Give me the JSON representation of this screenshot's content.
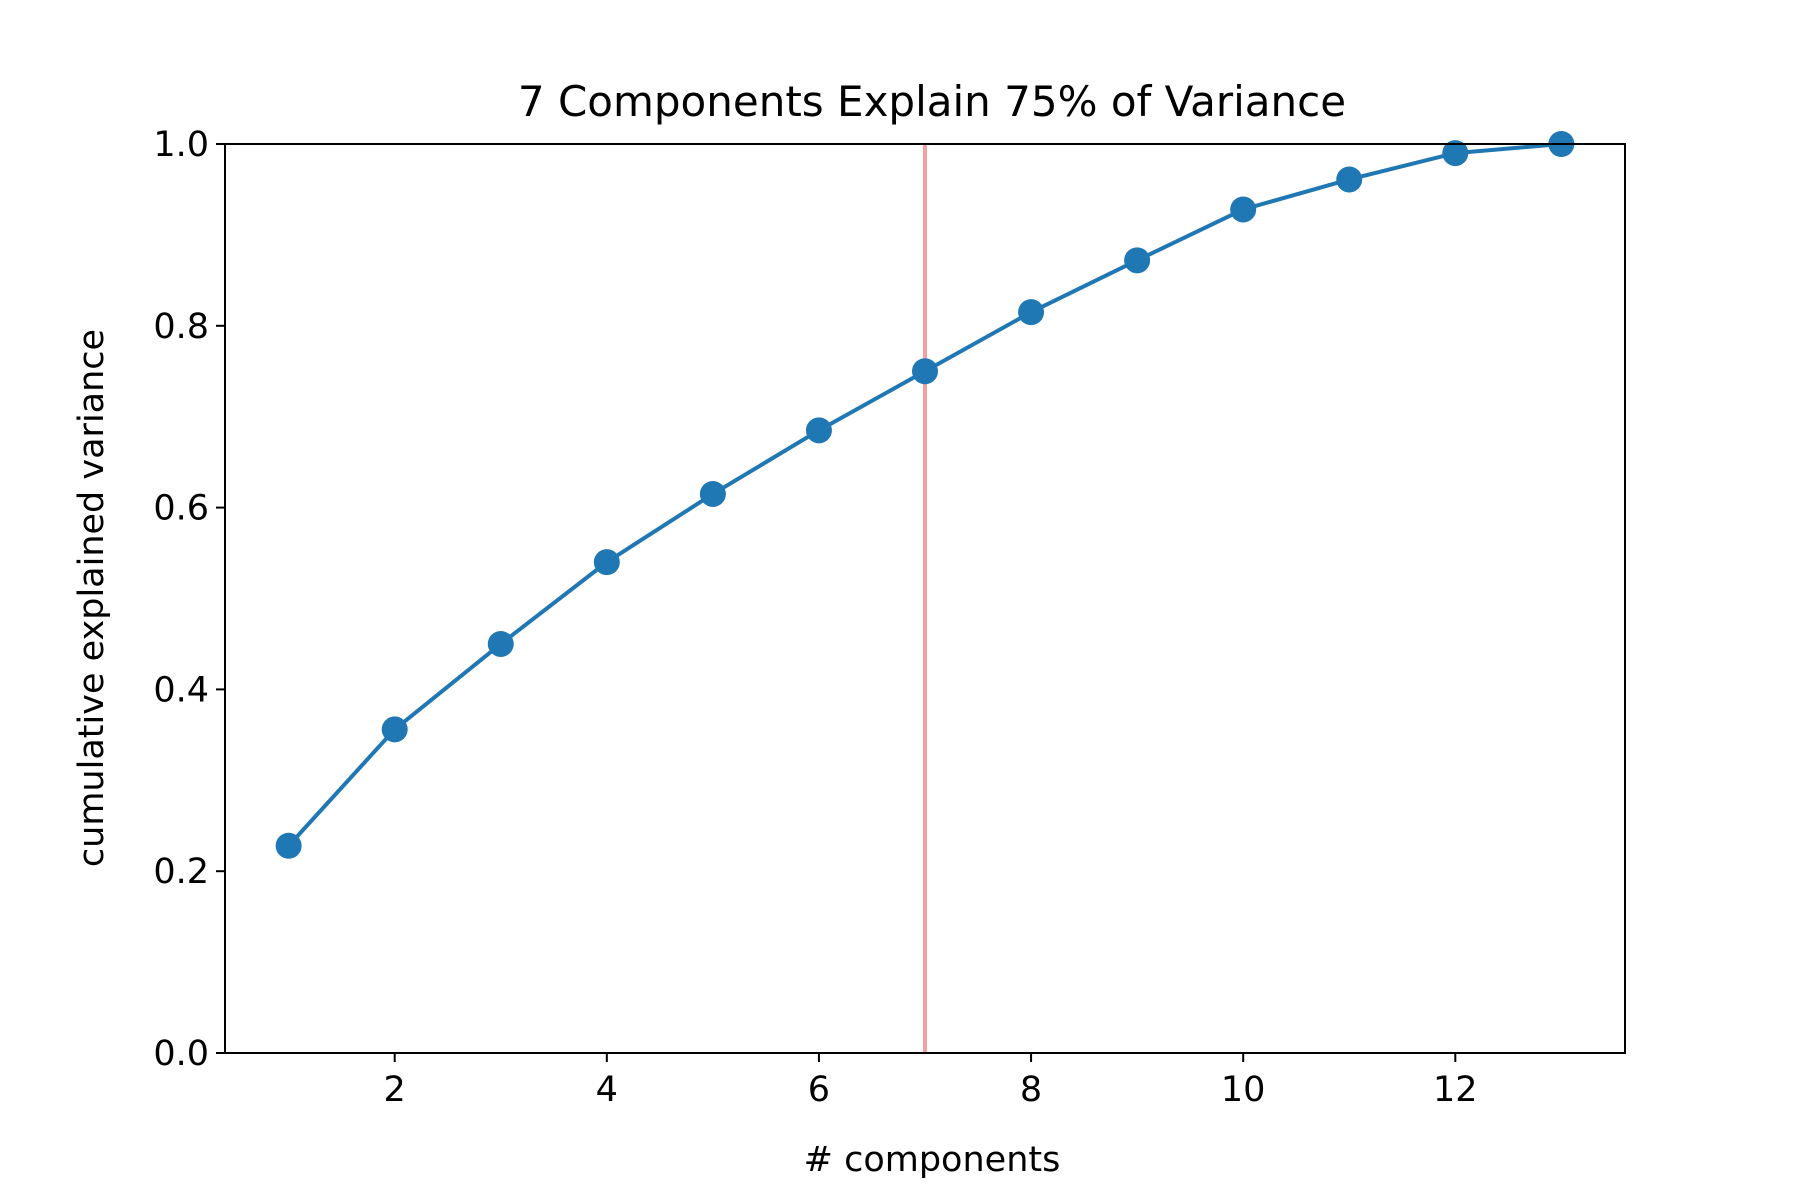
{
  "chart_data": {
    "type": "line",
    "title": "7 Components Explain 75% of Variance",
    "xlabel": "# components",
    "ylabel": "cumulative explained variance",
    "x": [
      1,
      2,
      3,
      4,
      5,
      6,
      7,
      8,
      9,
      10,
      11,
      12,
      13
    ],
    "y": [
      0.228,
      0.356,
      0.45,
      0.54,
      0.615,
      0.685,
      0.75,
      0.815,
      0.872,
      0.928,
      0.961,
      0.99,
      1.0
    ],
    "xlim": [
      0.4,
      13.6
    ],
    "ylim": [
      0,
      1
    ],
    "x_ticks": [
      2,
      4,
      6,
      8,
      10,
      12
    ],
    "x_tick_labels": [
      "2",
      "4",
      "6",
      "8",
      "10",
      "12"
    ],
    "y_ticks": [
      0,
      0.2,
      0.4,
      0.6,
      0.8,
      1.0
    ],
    "y_tick_labels": [
      "0.0",
      "0.2",
      "0.4",
      "0.6",
      "0.8",
      "1.0"
    ],
    "vline": {
      "x": 7,
      "color": "#f4a0a0"
    },
    "series_color": "#1f77b4",
    "grid": false
  }
}
